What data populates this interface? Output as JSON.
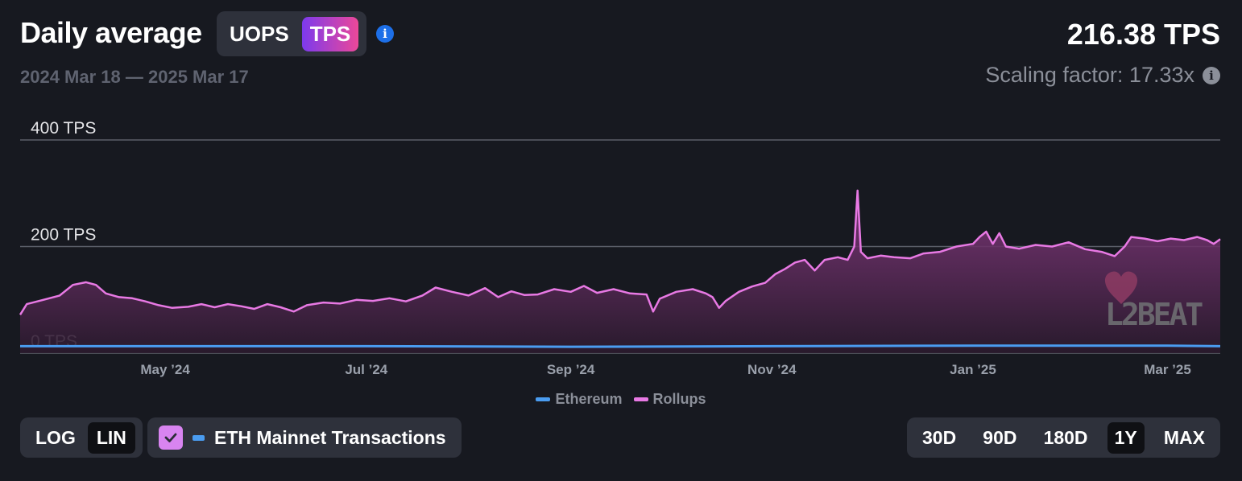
{
  "header": {
    "title": "Daily average",
    "metric_tabs": [
      {
        "label": "UOPS",
        "active": false
      },
      {
        "label": "TPS",
        "active": true
      }
    ],
    "date_range": "2024 Mar 18 — 2025 Mar 17",
    "current_value": "216.38 TPS",
    "scaling_factor": "Scaling factor: 17.33x"
  },
  "watermark": "L2BEAT",
  "controls": {
    "scale_options": [
      {
        "label": "LOG",
        "active": false
      },
      {
        "label": "LIN",
        "active": true
      }
    ],
    "eth_toggle": {
      "label": "ETH Mainnet Transactions",
      "checked": true
    },
    "range_options": [
      {
        "label": "30D",
        "active": false
      },
      {
        "label": "90D",
        "active": false
      },
      {
        "label": "180D",
        "active": false
      },
      {
        "label": "1Y",
        "active": true
      },
      {
        "label": "MAX",
        "active": false
      }
    ]
  },
  "colors": {
    "rollups": "#e879e4",
    "ethereum": "#4a9cf0",
    "background": "#171920",
    "accent_gradient": [
      "#7c3aed",
      "#ec4899"
    ]
  },
  "chart_data": {
    "type": "area",
    "title": "Daily average",
    "x_start": "2024-03-18",
    "x_end": "2025-03-17",
    "x_ticks": [
      {
        "date": "2024-05-01",
        "label": "May ’24"
      },
      {
        "date": "2024-07-01",
        "label": "Jul ’24"
      },
      {
        "date": "2024-09-01",
        "label": "Sep ’24"
      },
      {
        "date": "2024-11-01",
        "label": "Nov ’24"
      },
      {
        "date": "2025-01-01",
        "label": "Jan ’25"
      },
      {
        "date": "2025-03-01",
        "label": "Mar ’25"
      }
    ],
    "y_ticks": [
      {
        "value": 0,
        "label": "0 TPS"
      },
      {
        "value": 200,
        "label": "200 TPS"
      },
      {
        "value": 400,
        "label": "400 TPS"
      }
    ],
    "ylim": [
      0,
      400
    ],
    "grid": true,
    "legend_position": "bottom-center",
    "series": [
      {
        "name": "Ethereum",
        "color": "#4a9cf0",
        "points": [
          [
            "2024-03-18",
            13
          ],
          [
            "2024-05-01",
            13
          ],
          [
            "2024-07-01",
            13
          ],
          [
            "2024-09-01",
            12
          ],
          [
            "2024-11-01",
            13
          ],
          [
            "2025-01-01",
            14
          ],
          [
            "2025-03-01",
            14
          ],
          [
            "2025-03-17",
            13
          ]
        ]
      },
      {
        "name": "Rollups",
        "color": "#e879e4",
        "points": [
          [
            "2024-03-18",
            72
          ],
          [
            "2024-03-20",
            92
          ],
          [
            "2024-03-25",
            100
          ],
          [
            "2024-03-30",
            108
          ],
          [
            "2024-04-03",
            128
          ],
          [
            "2024-04-07",
            133
          ],
          [
            "2024-04-10",
            128
          ],
          [
            "2024-04-13",
            112
          ],
          [
            "2024-04-17",
            105
          ],
          [
            "2024-04-21",
            103
          ],
          [
            "2024-04-25",
            97
          ],
          [
            "2024-04-29",
            90
          ],
          [
            "2024-05-03",
            85
          ],
          [
            "2024-05-08",
            87
          ],
          [
            "2024-05-12",
            92
          ],
          [
            "2024-05-16",
            86
          ],
          [
            "2024-05-20",
            92
          ],
          [
            "2024-05-24",
            88
          ],
          [
            "2024-05-28",
            83
          ],
          [
            "2024-06-01",
            92
          ],
          [
            "2024-06-05",
            86
          ],
          [
            "2024-06-09",
            78
          ],
          [
            "2024-06-13",
            90
          ],
          [
            "2024-06-18",
            95
          ],
          [
            "2024-06-23",
            93
          ],
          [
            "2024-06-28",
            100
          ],
          [
            "2024-07-03",
            98
          ],
          [
            "2024-07-08",
            103
          ],
          [
            "2024-07-13",
            97
          ],
          [
            "2024-07-18",
            108
          ],
          [
            "2024-07-22",
            123
          ],
          [
            "2024-07-27",
            115
          ],
          [
            "2024-08-01",
            108
          ],
          [
            "2024-08-06",
            122
          ],
          [
            "2024-08-10",
            105
          ],
          [
            "2024-08-14",
            116
          ],
          [
            "2024-08-18",
            109
          ],
          [
            "2024-08-22",
            110
          ],
          [
            "2024-08-27",
            120
          ],
          [
            "2024-09-01",
            115
          ],
          [
            "2024-09-05",
            126
          ],
          [
            "2024-09-09",
            113
          ],
          [
            "2024-09-14",
            120
          ],
          [
            "2024-09-19",
            112
          ],
          [
            "2024-09-24",
            110
          ],
          [
            "2024-09-26",
            78
          ],
          [
            "2024-09-28",
            102
          ],
          [
            "2024-10-03",
            115
          ],
          [
            "2024-10-08",
            120
          ],
          [
            "2024-10-12",
            112
          ],
          [
            "2024-10-14",
            105
          ],
          [
            "2024-10-16",
            85
          ],
          [
            "2024-10-18",
            98
          ],
          [
            "2024-10-22",
            115
          ],
          [
            "2024-10-26",
            125
          ],
          [
            "2024-10-30",
            132
          ],
          [
            "2024-11-02",
            148
          ],
          [
            "2024-11-05",
            158
          ],
          [
            "2024-11-08",
            170
          ],
          [
            "2024-11-11",
            175
          ],
          [
            "2024-11-14",
            155
          ],
          [
            "2024-11-17",
            175
          ],
          [
            "2024-11-21",
            180
          ],
          [
            "2024-11-24",
            175
          ],
          [
            "2024-11-26",
            200
          ],
          [
            "2024-11-27",
            305
          ],
          [
            "2024-11-28",
            190
          ],
          [
            "2024-11-30",
            178
          ],
          [
            "2024-12-04",
            183
          ],
          [
            "2024-12-08",
            180
          ],
          [
            "2024-12-13",
            178
          ],
          [
            "2024-12-17",
            187
          ],
          [
            "2024-12-22",
            190
          ],
          [
            "2024-12-27",
            200
          ],
          [
            "2025-01-01",
            205
          ],
          [
            "2025-01-03",
            218
          ],
          [
            "2025-01-05",
            228
          ],
          [
            "2025-01-07",
            205
          ],
          [
            "2025-01-09",
            225
          ],
          [
            "2025-01-11",
            200
          ],
          [
            "2025-01-15",
            196
          ],
          [
            "2025-01-20",
            203
          ],
          [
            "2025-01-25",
            200
          ],
          [
            "2025-01-30",
            208
          ],
          [
            "2025-02-04",
            195
          ],
          [
            "2025-02-09",
            190
          ],
          [
            "2025-02-13",
            182
          ],
          [
            "2025-02-16",
            200
          ],
          [
            "2025-02-18",
            218
          ],
          [
            "2025-02-22",
            215
          ],
          [
            "2025-02-26",
            210
          ],
          [
            "2025-03-02",
            215
          ],
          [
            "2025-03-06",
            212
          ],
          [
            "2025-03-10",
            218
          ],
          [
            "2025-03-13",
            212
          ],
          [
            "2025-03-15",
            205
          ],
          [
            "2025-03-17",
            214
          ]
        ]
      }
    ]
  }
}
